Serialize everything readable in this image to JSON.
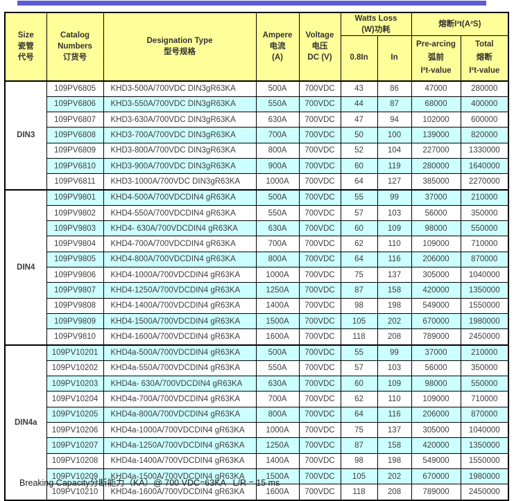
{
  "colors": {
    "top_bar": "#5B5BD6",
    "header_bg": "#FFFF99",
    "row_alt_bg": "#CCFFFF",
    "border": "#000000",
    "text": "#3D3D3D"
  },
  "table": {
    "header": {
      "size": [
        "Size",
        "瓷管",
        "代号"
      ],
      "catalog": [
        "Catalog",
        "Numbers",
        "订货号"
      ],
      "designation": [
        "Designation Type",
        "型号规格"
      ],
      "ampere": [
        "Ampere",
        "电流",
        "(A)"
      ],
      "voltage": [
        "Voltage",
        "电压",
        "DC (V)"
      ],
      "watts_loss": [
        "Watts Loss",
        "(W)功耗"
      ],
      "watts_sub": [
        "0.8In",
        "In"
      ],
      "i2t": "熔断I²t(A²S)",
      "prearcing": [
        "Pre-arcing",
        "弧前",
        "I²t-value"
      ],
      "total": [
        "Total",
        "熔断",
        "I²t-value"
      ]
    },
    "groups": [
      {
        "size": "DIN3",
        "rows": [
          [
            "109PV6805",
            "KHD3-500A/700VDC DIN3gR63KA",
            "500A",
            "700VDC",
            "43",
            "86",
            "47000",
            "280000"
          ],
          [
            "109PV6806",
            "KHD3-550A/700VDC DIN3gR63KA",
            "550A",
            "700VDC",
            "44",
            "87",
            "68000",
            "400000"
          ],
          [
            "109PV6807",
            "KHD3-630A/700VDC DIN3gR63KA",
            "630A",
            "700VDC",
            "47",
            "94",
            "102000",
            "600000"
          ],
          [
            "109PV6808",
            "KHD3-700A/700VDC DIN3gR63KA",
            "700A",
            "700VDC",
            "50",
            "100",
            "139000",
            "820000"
          ],
          [
            "109PV6809",
            "KHD3-800A/700VDC DIN3gR63KA",
            "800A",
            "700VDC",
            "52",
            "104",
            "227000",
            "1330000"
          ],
          [
            "109PV6810",
            "KHD3-900A/700VDC DIN3gR63KA",
            "900A",
            "700VDC",
            "60",
            "119",
            "280000",
            "1640000"
          ],
          [
            "109PV6811",
            "KHD3-1000A/700VDC DIN3gR63KA",
            "1000A",
            "700VDC",
            "64",
            "127",
            "385000",
            "2270000"
          ]
        ]
      },
      {
        "size": "DIN4",
        "rows": [
          [
            "109PV9801",
            "KHD4-500A/700VDCDIN4 gR63KA",
            "500A",
            "700VDC",
            "55",
            "99",
            "37000",
            "210000"
          ],
          [
            "109PV9802",
            "KHD4-550A/700VDCDIN4 gR63KA",
            "550A",
            "700VDC",
            "57",
            "103",
            "56000",
            "350000"
          ],
          [
            "109PV9803",
            "KHD4- 630A/700VDCDIN4 gR63KA",
            "630A",
            "700VDC",
            "60",
            "109",
            "98000",
            "550000"
          ],
          [
            "109PV9804",
            "KHD4-700A/700VDCDIN4 gR63KA",
            "700A",
            "700VDC",
            "62",
            "110",
            "109000",
            "710000"
          ],
          [
            "109PV9805",
            "KHD4-800A/700VDCDIN4 gR63KA",
            "800A",
            "700VDC",
            "64",
            "116",
            "206000",
            "870000"
          ],
          [
            "109PV9806",
            "KHD4-1000A/700VDCDIN4 gR63KA",
            "1000A",
            "700VDC",
            "75",
            "137",
            "305000",
            "1040000"
          ],
          [
            "109PV9807",
            "KHD4-1250A/700VDCDIN4 gR63KA",
            "1250A",
            "700VDC",
            "87",
            "158",
            "420000",
            "1350000"
          ],
          [
            "109PV9808",
            "KHD4-1400A/700VDCDIN4 gR63KA",
            "1400A",
            "700VDC",
            "98",
            "198",
            "549000",
            "1550000"
          ],
          [
            "109PV9809",
            "KHD4-1500A/700VDCDIN4 gR63KA",
            "1500A",
            "700VDC",
            "105",
            "202",
            "670000",
            "1980000"
          ],
          [
            "109PV9810",
            "KHD4-1600A/700VDCDIN4 gR63KA",
            "1600A",
            "700VDC",
            "118",
            "208",
            "789000",
            "2450000"
          ]
        ]
      },
      {
        "size": "DIN4a",
        "rows": [
          [
            "109PV10201",
            "KHD4a-500A/700VDCDIN4 gR63KA",
            "500A",
            "700VDC",
            "55",
            "99",
            "37000",
            "210000"
          ],
          [
            "109PV10202",
            "KHD4a-550A/700VDCDIN4 gR63KA",
            "550A",
            "700VDC",
            "57",
            "103",
            "56000",
            "350000"
          ],
          [
            "109PV10203",
            "KHD4a- 630A/700VDCDIN4 gR63KA",
            "630A",
            "700VDC",
            "60",
            "109",
            "98000",
            "550000"
          ],
          [
            "109PV10204",
            "KHD4a-700A/700VDCDIN4 gR63KA",
            "700A",
            "700VDC",
            "62",
            "110",
            "109000",
            "710000"
          ],
          [
            "109PV10205",
            "KHD4a-800A/700VDCDIN4 gR63KA",
            "800A",
            "700VDC",
            "64",
            "116",
            "206000",
            "870000"
          ],
          [
            "109PV10206",
            "KHD4a-1000A/700VDCDIN4 gR63KA",
            "1000A",
            "700VDC",
            "75",
            "137",
            "305000",
            "1040000"
          ],
          [
            "109PV10207",
            "KHD4a-1250A/700VDCDIN4 gR63KA",
            "1250A",
            "700VDC",
            "87",
            "158",
            "420000",
            "1350000"
          ],
          [
            "109PV10208",
            "KHD4a-1400A/700VDCDIN4 gR63KA",
            "1400A",
            "700VDC",
            "98",
            "198",
            "549000",
            "1550000"
          ],
          [
            "109PV10209",
            "KHD4a-1500A/700VDCDIN4 gR63KA",
            "1500A",
            "700VDC",
            "105",
            "202",
            "670000",
            "1980000"
          ],
          [
            "109PV10210",
            "KHD4a-1600A/700VDCDIN4 gR63KA",
            "1600A",
            "700VDC",
            "118",
            "208",
            "789000",
            "2450000"
          ]
        ]
      }
    ]
  },
  "footer": {
    "text": "Breaking Capacity分断能力（KA）@ 700 VDC=63KA   L/R = 15 ms"
  }
}
